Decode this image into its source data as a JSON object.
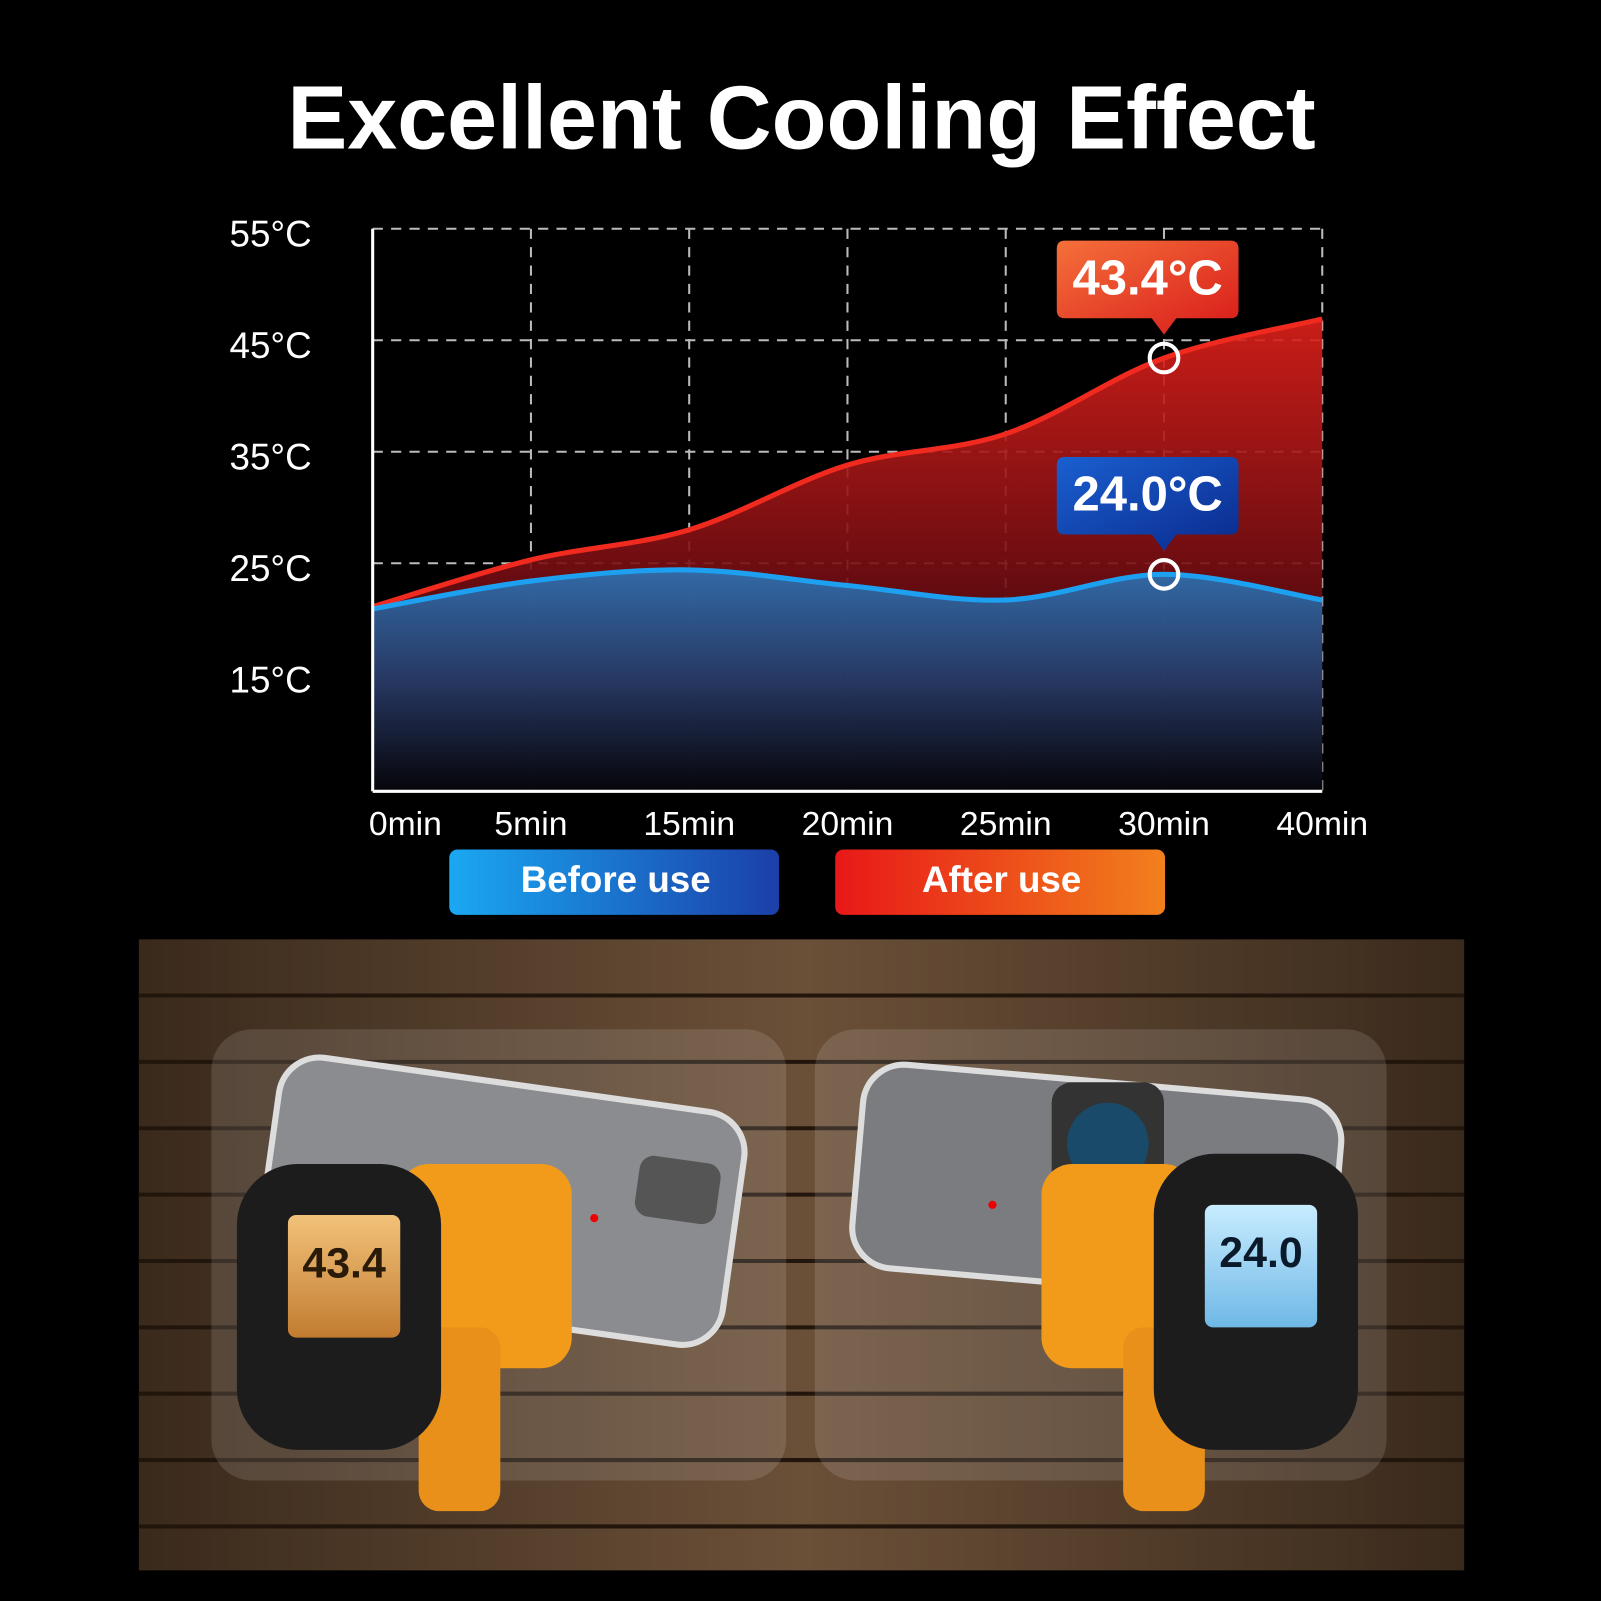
{
  "chart_data": {
    "type": "area-line",
    "title": "Excellent Cooling Effect",
    "categories": [
      "0min",
      "5min",
      "15min",
      "20min",
      "25min",
      "30min",
      "40min"
    ],
    "series": [
      {
        "name": "Before use",
        "color": "#1ea0f0",
        "values": [
          20.9,
          23.4,
          24.4,
          23.0,
          21.7,
          24.0,
          21.7
        ],
        "value_labels": [
          null,
          null,
          null,
          null,
          null,
          "24.0°C",
          null
        ]
      },
      {
        "name": "After use",
        "color": "#f02a1e",
        "values": [
          21.1,
          25.3,
          28.0,
          33.8,
          36.6,
          43.4,
          46.9
        ],
        "value_labels": [
          null,
          null,
          null,
          null,
          null,
          "43.4°C",
          null
        ]
      }
    ],
    "ylim": [
      5,
      55
    ],
    "yticks": [
      {
        "value": 15,
        "label": "15°C"
      },
      {
        "value": 25,
        "label": "25°C"
      },
      {
        "value": 35,
        "label": "35°C"
      },
      {
        "value": 45,
        "label": "45°C"
      },
      {
        "value": 55,
        "label": "55°C"
      }
    ],
    "grid": true
  },
  "photo": {
    "left_reading": "43.4",
    "right_reading": "24.0"
  }
}
